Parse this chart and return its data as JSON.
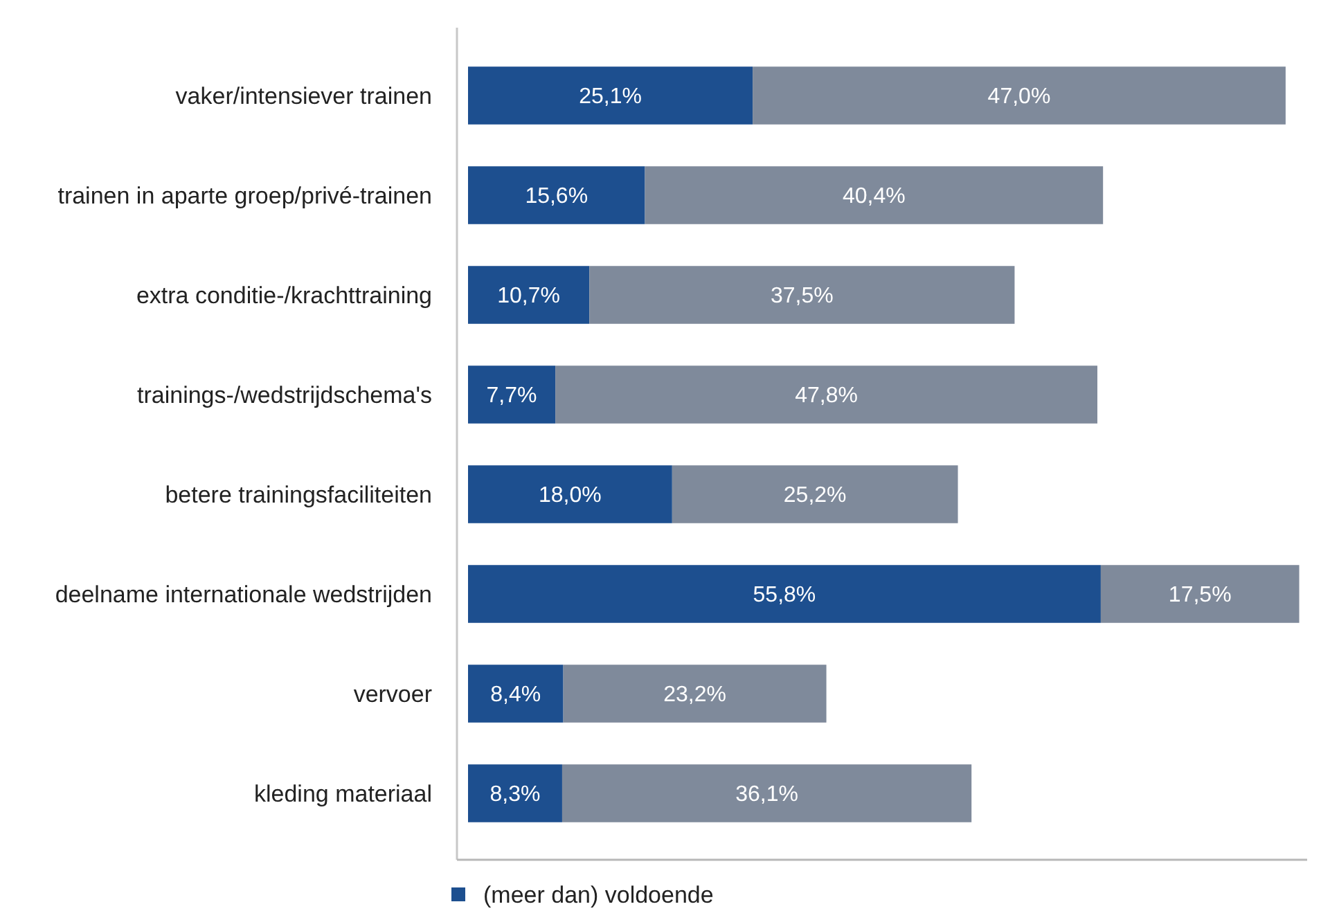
{
  "chart_data": {
    "type": "bar",
    "orientation": "horizontal",
    "stacked": true,
    "categories": [
      "vaker/intensiever trainen",
      "trainen in aparte groep/privé-trainen",
      "extra conditie-/krachttraining",
      "trainings-/wedstrijdschema's",
      "betere trainingsfaciliteiten",
      "deelname internationale wedstrijden",
      "vervoer",
      "kleding materiaal"
    ],
    "series": [
      {
        "name": "(meer dan) voldoende",
        "color": "#1d4f8f",
        "values": [
          25.1,
          15.6,
          10.7,
          7.7,
          18.0,
          55.8,
          8.4,
          8.3
        ],
        "value_labels": [
          "25,1%",
          "15,6%",
          "10,7%",
          "7,7%",
          "18,0%",
          "55,8%",
          "8,4%",
          "8,3%"
        ]
      },
      {
        "color": "#7f8a9b",
        "values": [
          47.0,
          40.4,
          37.5,
          47.8,
          25.2,
          17.5,
          23.2,
          36.1
        ],
        "value_labels": [
          "47,0%",
          "40,4%",
          "37,5%",
          "47,8%",
          "25,2%",
          "17,5%",
          "23,2%",
          "36,1%"
        ]
      }
    ],
    "xlim": [
      0,
      74
    ],
    "tick_labels": "y",
    "legend": "bottom"
  }
}
